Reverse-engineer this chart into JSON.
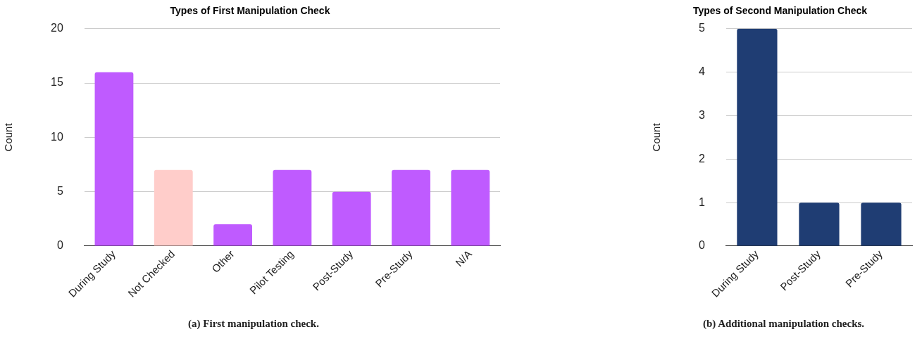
{
  "chart_data": [
    {
      "type": "bar",
      "title": "Types of First Manipulation Check",
      "ylabel": "Count",
      "categories": [
        "During Study",
        "Not Checked",
        "Other",
        "Pilot Testing",
        "Post-Study",
        "Pre-Study",
        "N/A"
      ],
      "values": [
        16,
        7,
        2,
        7,
        5,
        7,
        7
      ],
      "colors": [
        "#bf5bff",
        "#ffcdca",
        "#bf5bff",
        "#bf5bff",
        "#bf5bff",
        "#bf5bff",
        "#bf5bff"
      ],
      "ylim": [
        0,
        20
      ],
      "yticks": [
        0,
        5,
        10,
        15,
        20
      ],
      "grid": "y",
      "legend": false,
      "annotations": [
        "(a) First manipulation check."
      ]
    },
    {
      "type": "bar",
      "title": "Types of Second Manipulation Check",
      "ylabel": "Count",
      "categories": [
        "During Study",
        "Post-Study",
        "Pre-Study"
      ],
      "values": [
        5,
        1,
        1
      ],
      "colors": [
        "#1f3d73",
        "#1f3d73",
        "#1f3d73"
      ],
      "ylim": [
        0,
        5
      ],
      "yticks": [
        0,
        1,
        2,
        3,
        4,
        5
      ],
      "grid": "y",
      "legend": false,
      "annotations": [
        "(b) Additional manipulation checks."
      ]
    }
  ]
}
